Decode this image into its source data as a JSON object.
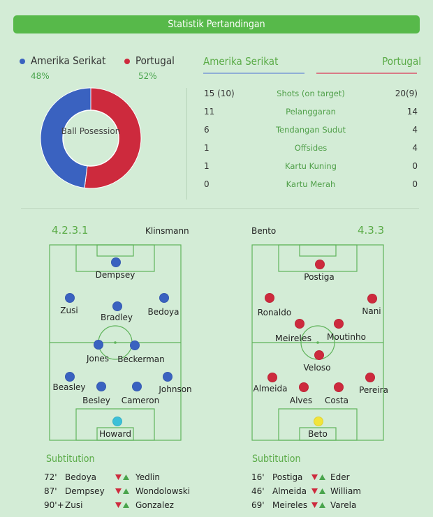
{
  "header": {
    "title": "Statistik Pertandingan"
  },
  "possession": {
    "label": "Ball Posession",
    "home": {
      "team": "Amerika Serikat",
      "percent_label": "48%",
      "value": 48,
      "color": "#3a62c0"
    },
    "away": {
      "team": "Portugal",
      "percent_label": "52%",
      "value": 52,
      "color": "#cd2a3d"
    }
  },
  "stats": {
    "home_team": "Amerika Serikat",
    "away_team": "Portugal",
    "home_underline_color": "#8faed6",
    "away_underline_color": "#d97a86",
    "rows": [
      {
        "home": "15 (10)",
        "name": "Shots (on target)",
        "away": "20(9)"
      },
      {
        "home": "11",
        "name": "Pelanggaran",
        "away": "14"
      },
      {
        "home": "6",
        "name": "Tendangan Sudut",
        "away": "4"
      },
      {
        "home": "1",
        "name": "Offsides",
        "away": "4"
      },
      {
        "home": "1",
        "name": "Kartu Kuning",
        "away": "0"
      },
      {
        "home": "0",
        "name": "Kartu Merah",
        "away": "0"
      }
    ]
  },
  "lineups": {
    "home": {
      "formation": "4.2.3.1",
      "coach": "Klinsmann",
      "players": [
        "Dempsey",
        "Zusi",
        "Bradley",
        "Bedoya",
        "Jones",
        "Beckerman",
        "Beasley",
        "Besley",
        "Cameron",
        "Johnson",
        "Howard"
      ]
    },
    "away": {
      "formation": "4.3.3",
      "coach": "Bento",
      "players": [
        "Postiga",
        "Ronaldo",
        "Nani",
        "Meireles",
        "Moutinho",
        "Veloso",
        "Almeida",
        "Alves",
        "Costa",
        "Pereira",
        "Beto"
      ]
    },
    "colors": {
      "home": "#3a62c0",
      "home_gk": "#3cc0d8",
      "away": "#cd2a3d",
      "away_gk": "#f2e43a"
    }
  },
  "substitutions": {
    "heading": "Subtitution",
    "home": [
      {
        "minute": "72'",
        "out": "Bedoya",
        "in": "Yedlin"
      },
      {
        "minute": "87'",
        "out": "Dempsey",
        "in": "Wondolowski"
      },
      {
        "minute": "90'+",
        "out": "Zusi",
        "in": "Gonzalez"
      }
    ],
    "away": [
      {
        "minute": "16'",
        "out": "Postiga",
        "in": "Eder"
      },
      {
        "minute": "46'",
        "out": "Almeida",
        "in": "William"
      },
      {
        "minute": "69'",
        "out": "Meireles",
        "in": "Varela"
      }
    ]
  }
}
